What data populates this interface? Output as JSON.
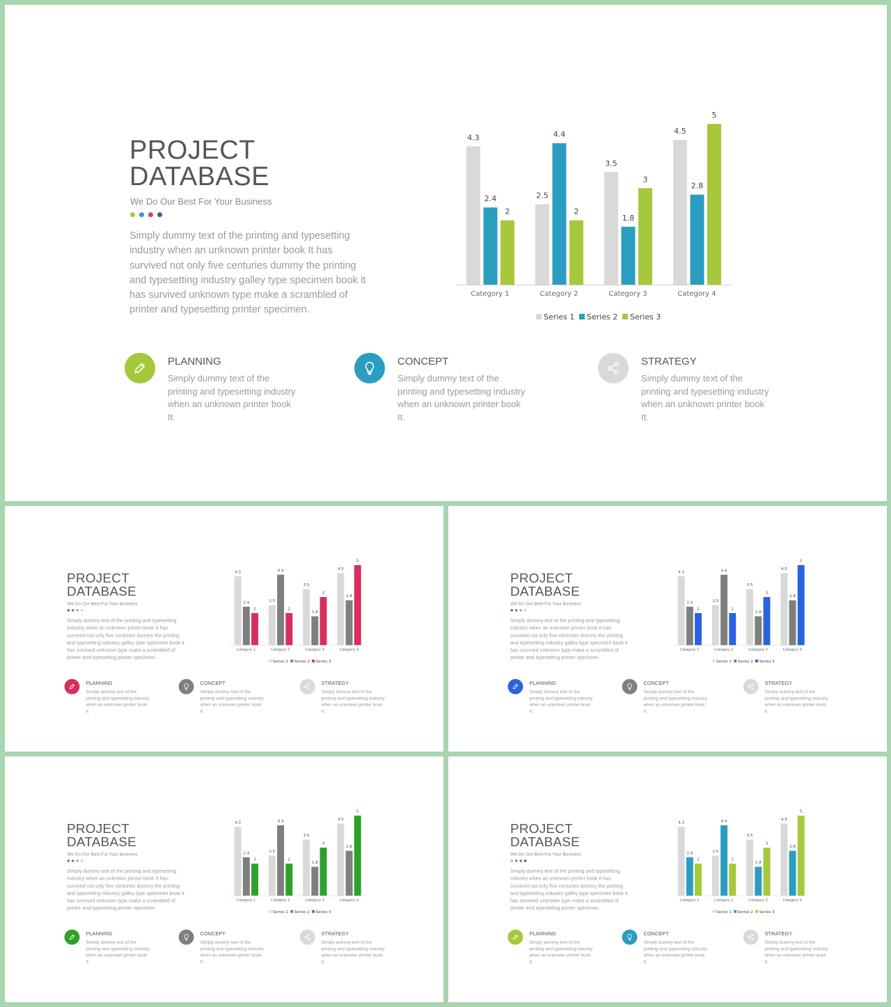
{
  "slides": [
    {
      "title_line1": "PROJECT",
      "title_line2": "DATABASE",
      "subtitle": "We Do Our Best For Your Business",
      "body": "Simply dummy text of the printing and typesetting industry when an unknown printer book It has survived not only five centuries dummy the printing and typesetting industry galley type specimen book it has survived unknown type make a scrambled of printer and typesetting printer specimen.",
      "dot_colors": [
        "#a5c93a",
        "#2b9dc0",
        "#e03a6e",
        "#5b4a9e"
      ],
      "series_colors": [
        "#d9d9d9",
        "#2b9dc0",
        "#a5c93a"
      ],
      "features": [
        {
          "title": "PLANNING",
          "text": "Simply dummy text of the printing and typesetting industry when an unknown printer book It.",
          "icon": "pencil-icon",
          "color": "#a5c93a"
        },
        {
          "title": "CONCEPT",
          "text": "Simply dummy text of the printing and typesetting industry when an unknown printer book It.",
          "icon": "lightbulb-icon",
          "color": "#2b9dc0"
        },
        {
          "title": "STRATEGY",
          "text": "Simply dummy text of the printing and typesetting industry when an unknown printer book It.",
          "icon": "share-icon",
          "color": "#d9d9d9"
        }
      ]
    },
    {
      "title_line1": "PROJECT",
      "title_line2": "DATABASE",
      "subtitle": "We Do Our Best For Your Business",
      "body": "Simply dummy text of the printing and typesetting industry when an unknown printer book It has survived not only five centuries dummy the printing and typesetting industry galley type specimen book it has survived unknown type make a scrambled of printer and typesetting printer specimen.",
      "dot_colors": [
        "#d7305e",
        "#7a7a7a",
        "#a8a8a8",
        "#cfcfcf"
      ],
      "series_colors": [
        "#d9d9d9",
        "#7f7f7f",
        "#d7305e"
      ],
      "features": [
        {
          "title": "PLANNING",
          "text": "Simply dummy text of the printing and typesetting industry when an unknown printer book It.",
          "icon": "pencil-icon",
          "color": "#d7305e"
        },
        {
          "title": "CONCEPT",
          "text": "Simply dummy text of the printing and typesetting industry when an unknown printer book It.",
          "icon": "lightbulb-icon",
          "color": "#7f7f7f"
        },
        {
          "title": "STRATEGY",
          "text": "Simply dummy text of the printing and typesetting industry when an unknown printer book It.",
          "icon": "share-icon",
          "color": "#d9d9d9"
        }
      ]
    },
    {
      "title_line1": "PROJECT",
      "title_line2": "DATABASE",
      "subtitle": "We Do Our Best For Your Business",
      "body": "Simply dummy text of the printing and typesetting industry when an unknown printer book It has survived not only five centuries dummy the printing and typesetting industry galley type specimen book it has survived unknown type make a scrambled of printer and typesetting printer specimen.",
      "dot_colors": [
        "#2b62e0",
        "#7a7a7a",
        "#a8a8a8",
        "#cfcfcf"
      ],
      "series_colors": [
        "#d9d9d9",
        "#7f7f7f",
        "#2b62e0"
      ],
      "features": [
        {
          "title": "PLANNING",
          "text": "Simply dummy text of the printing and typesetting industry when an unknown printer book It.",
          "icon": "pencil-icon",
          "color": "#2b62e0"
        },
        {
          "title": "CONCEPT",
          "text": "Simply dummy text of the printing and typesetting industry when an unknown printer book It.",
          "icon": "lightbulb-icon",
          "color": "#7f7f7f"
        },
        {
          "title": "STRATEGY",
          "text": "Simply dummy text of the printing and typesetting industry when an unknown printer book It.",
          "icon": "share-icon",
          "color": "#d9d9d9"
        }
      ]
    },
    {
      "title_line1": "PROJECT",
      "title_line2": "DATABASE",
      "subtitle": "We Do Our Best For Your Business",
      "body": "Simply dummy text of the printing and typesetting industry when an unknown printer book It has survived not only five centuries dummy the printing and typesetting industry galley type specimen book it has survived unknown type make a scrambled of printer and typesetting printer specimen.",
      "dot_colors": [
        "#2ea12a",
        "#7a7a7a",
        "#a8a8a8",
        "#cfcfcf"
      ],
      "series_colors": [
        "#d9d9d9",
        "#7f7f7f",
        "#2ea12a"
      ],
      "features": [
        {
          "title": "PLANNING",
          "text": "Simply dummy text of the printing and typesetting industry when an unknown printer book It.",
          "icon": "pencil-icon",
          "color": "#2ea12a"
        },
        {
          "title": "CONCEPT",
          "text": "Simply dummy text of the printing and typesetting industry when an unknown printer book It.",
          "icon": "lightbulb-icon",
          "color": "#7f7f7f"
        },
        {
          "title": "STRATEGY",
          "text": "Simply dummy text of the printing and typesetting industry when an unknown printer book It.",
          "icon": "share-icon",
          "color": "#d9d9d9"
        }
      ]
    },
    {
      "title_line1": "PROJECT",
      "title_line2": "DATABASE",
      "subtitle": "We Do Our Best For Your Business",
      "body": "Simply dummy text of the printing and typesetting industry when an unknown printer book It has survived not only five centuries dummy the printing and typesetting industry galley type specimen book it has survived unknown type make a scrambled of printer and typesetting printer specimen.",
      "dot_colors": [
        "#a5c93a",
        "#2b9dc0",
        "#e03a6e",
        "#5b4a9e"
      ],
      "series_colors": [
        "#d9d9d9",
        "#2b9dc0",
        "#a5c93a"
      ],
      "features": [
        {
          "title": "PLANNING",
          "text": "Simply dummy text of the printing and typesetting industry when an unknown printer book It.",
          "icon": "pencil-icon",
          "color": "#a5c93a"
        },
        {
          "title": "CONCEPT",
          "text": "Simply dummy text of the printing and typesetting industry when an unknown printer book It.",
          "icon": "lightbulb-icon",
          "color": "#2b9dc0"
        },
        {
          "title": "STRATEGY",
          "text": "Simply dummy text of the printing and typesetting industry when an unknown printer book It.",
          "icon": "share-icon",
          "color": "#d9d9d9"
        }
      ]
    }
  ],
  "chart_data": {
    "type": "bar",
    "categories": [
      "Category 1",
      "Category 2",
      "Category 3",
      "Category 4"
    ],
    "series": [
      {
        "name": "Series 1",
        "values": [
          4.3,
          2.5,
          3.5,
          4.5
        ]
      },
      {
        "name": "Series 2",
        "values": [
          2.4,
          4.4,
          1.8,
          2.8
        ]
      },
      {
        "name": "Series 3",
        "values": [
          2,
          2,
          3,
          5
        ]
      }
    ],
    "ylim": [
      0,
      5
    ],
    "grid": false,
    "legend": "bottom",
    "data_labels": true
  }
}
